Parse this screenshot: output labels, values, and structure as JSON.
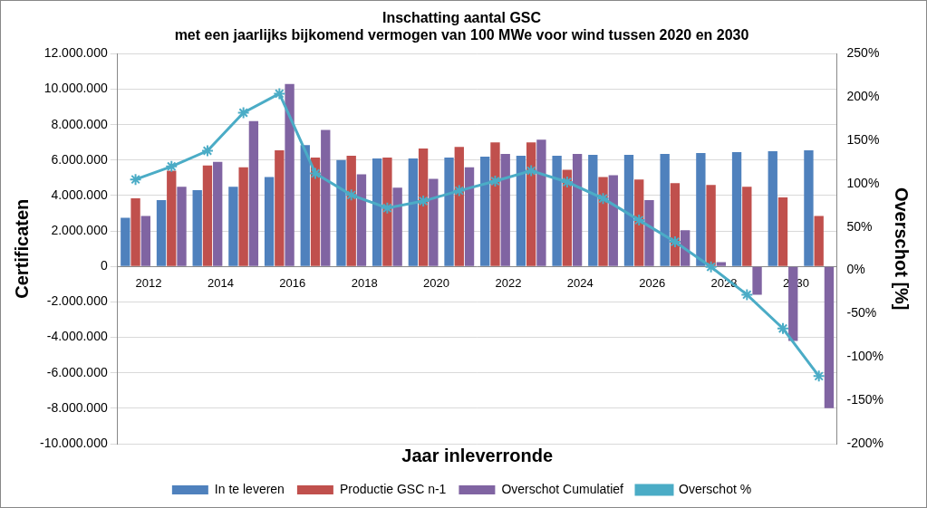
{
  "chart_data": {
    "type": "bar",
    "title": [
      "Inschatting aantal GSC",
      "met een jaarlijks bijkomend vermogen van 100 MWe voor wind tussen 2020 en 2030"
    ],
    "x_label": "Jaar inleverronde",
    "y_label": "Certificaten",
    "y2_label": "Overschot [%]",
    "categories": [
      "2012",
      null,
      "2014",
      null,
      "2016",
      null,
      "2018",
      null,
      "2020",
      null,
      "2022",
      null,
      "2024",
      null,
      "2026",
      null,
      "2028",
      null,
      "2030",
      null
    ],
    "series": [
      {
        "name": "In te leveren",
        "type": "bar",
        "color": "#4f81bd",
        "values": [
          2750000,
          3750000,
          4300000,
          4500000,
          5050000,
          6850000,
          6000000,
          6100000,
          6100000,
          6150000,
          6200000,
          6250000,
          6250000,
          6300000,
          6300000,
          6350000,
          6400000,
          6450000,
          6500000,
          6550000
        ]
      },
      {
        "name": "Productie GSC n-1",
        "type": "bar",
        "color": "#c0504d",
        "values": [
          3850000,
          5400000,
          5700000,
          5600000,
          6550000,
          6150000,
          6250000,
          6150000,
          6650000,
          6750000,
          7000000,
          7000000,
          5450000,
          5050000,
          4900000,
          4700000,
          4600000,
          4500000,
          3900000,
          2850000
        ]
      },
      {
        "name": "Overschot Cumulatief",
        "type": "bar",
        "color": "#8064a2",
        "values": [
          2850000,
          4500000,
          5900000,
          8200000,
          10300000,
          7700000,
          5200000,
          4450000,
          4950000,
          5600000,
          6350000,
          7150000,
          6350000,
          5150000,
          3750000,
          2050000,
          250000,
          -1600000,
          -4200000,
          -8000000
        ]
      },
      {
        "name": "Overschot %",
        "type": "line",
        "axis": "y2",
        "color": "#4bacc6",
        "marker": "star",
        "values": [
          105,
          120,
          138,
          182,
          204,
          112,
          87,
          72,
          80,
          92,
          103,
          115,
          102,
          83,
          58,
          33,
          4,
          -28,
          -67,
          -122
        ]
      }
    ],
    "ylim": [
      -10000000,
      12000000
    ],
    "yticks": [
      {
        "value": -10000000,
        "label": "-10.000.000"
      },
      {
        "value": -8000000,
        "label": "-8.000.000"
      },
      {
        "value": -6000000,
        "label": "-6.000.000"
      },
      {
        "value": -4000000,
        "label": "-4.000.000"
      },
      {
        "value": -2000000,
        "label": "-2.000.000"
      },
      0,
      {
        "value": 2000000,
        "label": "2.000.000"
      },
      {
        "value": 4000000,
        "label": "4.000.000"
      },
      {
        "value": 6000000,
        "label": "6.000.000"
      },
      {
        "value": 8000000,
        "label": "8.000.000"
      },
      {
        "value": 10000000,
        "label": "10.000.000"
      },
      {
        "value": 12000000,
        "label": "12.000.000"
      }
    ],
    "y2lim": [
      -200,
      250
    ],
    "y2ticks": [
      {
        "value": -200,
        "label": "-200%"
      },
      {
        "value": -150,
        "label": "-150%"
      },
      {
        "value": -100,
        "label": "-100%"
      },
      {
        "value": -50,
        "label": "-50%"
      },
      {
        "value": 0,
        "label": "0%"
      },
      {
        "value": 50,
        "label": "50%"
      },
      {
        "value": 100,
        "label": "100%"
      },
      {
        "value": 150,
        "label": "150%"
      },
      {
        "value": 200,
        "label": "200%"
      },
      {
        "value": 250,
        "label": "250%"
      }
    ],
    "grid": true,
    "legend": "bottom"
  }
}
